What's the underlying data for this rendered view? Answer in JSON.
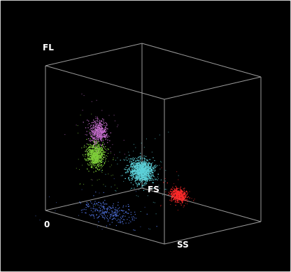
{
  "chart_data": {
    "type": "scatter",
    "dimensions": 3,
    "title": "",
    "axis_labels": {
      "x": "SS",
      "y": "FS",
      "z": "FL"
    },
    "origin_label": "0",
    "range": [
      0,
      1
    ],
    "grid": false,
    "legend": "none",
    "background": "#000000",
    "box_color": "#9a9a9a",
    "label_color": "#ffffff",
    "clusters": [
      {
        "color": "#5cd0d8",
        "count": 1200,
        "center": [
          0.62,
          0.23,
          0.38
        ],
        "spread": [
          0.04,
          0.035,
          0.038
        ]
      },
      {
        "color": "#ff2a2a",
        "count": 450,
        "center": [
          0.84,
          0.34,
          0.25
        ],
        "spread": [
          0.028,
          0.022,
          0.022
        ]
      },
      {
        "color": "#7fcf3a",
        "count": 750,
        "center": [
          0.37,
          0.06,
          0.46
        ],
        "spread": [
          0.026,
          0.028,
          0.04
        ]
      },
      {
        "color": "#c76fd0",
        "count": 450,
        "center": [
          0.38,
          0.08,
          0.62
        ],
        "spread": [
          0.028,
          0.03,
          0.038
        ]
      },
      {
        "color": "#4d6ed8",
        "count": 260,
        "center": [
          0.4,
          0.15,
          0.06
        ],
        "spread": [
          0.11,
          0.07,
          0.03
        ]
      }
    ]
  }
}
